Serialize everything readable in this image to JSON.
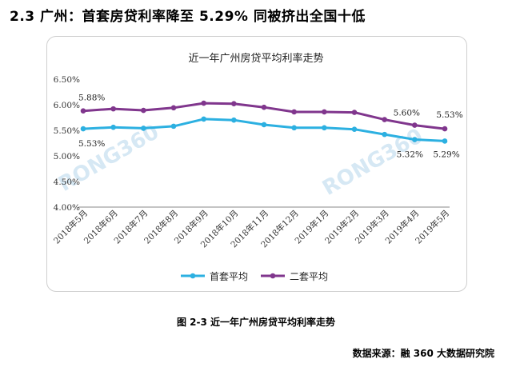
{
  "heading": "2.3 广州：首套房贷利率降至 5.29% 同被挤出全国十低",
  "caption": "图 2-3 近一年广州房贷平均利率走势",
  "source": "数据来源：融 360 大数据研究院",
  "watermarks": [
    "RONG360",
    "RONG360"
  ],
  "colors": {
    "first": "#2cb0e1",
    "second": "#80368d",
    "axis": "#888888",
    "watermark": "#d6e8f4"
  },
  "chart_data": {
    "type": "line",
    "title": "近一年广州房贷平均利率走势",
    "xlabel": "",
    "ylabel": "",
    "ylim": [
      4.0,
      6.5
    ],
    "yticks": [
      "4.00%",
      "4.50%",
      "5.00%",
      "5.50%",
      "6.00%",
      "6.50%"
    ],
    "yticks_values": [
      4.0,
      4.5,
      5.0,
      5.5,
      6.0,
      6.5
    ],
    "grid": false,
    "legend_position": "bottom",
    "categories": [
      "2018年5月",
      "2018年6月",
      "2018年7月",
      "2018年8月",
      "2018年9月",
      "2018年10月",
      "2018年11月",
      "2018年12月",
      "2019年1月",
      "2019年2月",
      "2019年3月",
      "2019年4月",
      "2019年5月"
    ],
    "series": [
      {
        "name": "首套平均",
        "color": "#2cb0e1",
        "values": [
          5.53,
          5.56,
          5.54,
          5.58,
          5.72,
          5.7,
          5.61,
          5.55,
          5.55,
          5.52,
          5.42,
          5.32,
          5.29
        ]
      },
      {
        "name": "二套平均",
        "color": "#80368d",
        "values": [
          5.88,
          5.92,
          5.89,
          5.94,
          6.03,
          6.02,
          5.95,
          5.86,
          5.86,
          5.85,
          5.71,
          5.6,
          5.53
        ]
      }
    ],
    "annotations": [
      {
        "text": "5.88%",
        "series": 1,
        "index": 0
      },
      {
        "text": "5.53%",
        "series": 0,
        "index": 0
      },
      {
        "text": "5.60%",
        "series": 1,
        "index": 11
      },
      {
        "text": "5.53%",
        "series": 1,
        "index": 12
      },
      {
        "text": "5.32%",
        "series": 0,
        "index": 11
      },
      {
        "text": "5.29%",
        "series": 0,
        "index": 12
      }
    ]
  }
}
